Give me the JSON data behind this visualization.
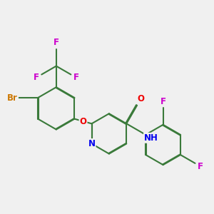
{
  "background_color": "#f0f0f0",
  "bond_color": "#3a7a3a",
  "bond_width": 1.5,
  "atom_colors": {
    "N": "#0000ee",
    "O": "#ee0000",
    "F": "#cc00cc",
    "Br": "#cc7700",
    "C": "#3a7a3a",
    "H": "#3a7a3a"
  },
  "figsize": [
    3.0,
    3.0
  ],
  "dpi": 100
}
